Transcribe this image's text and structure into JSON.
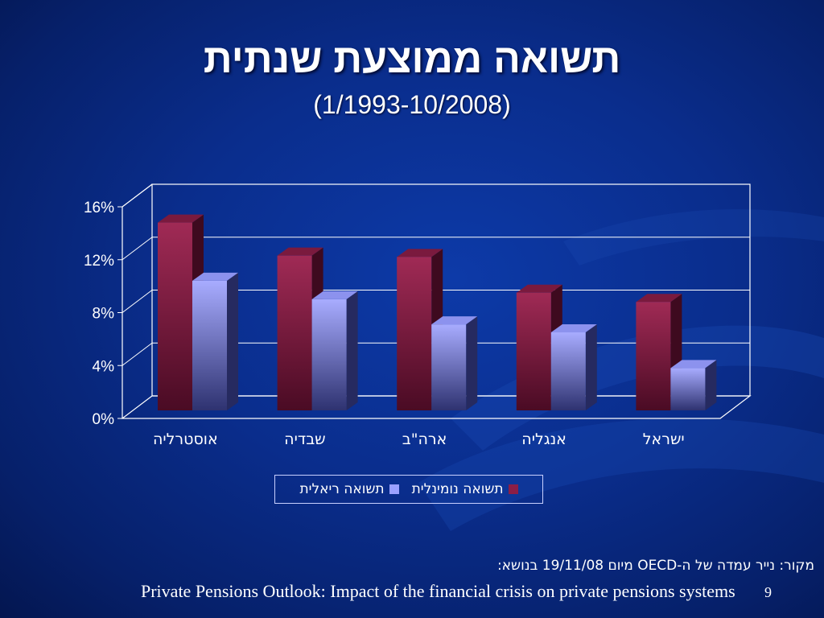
{
  "slide": {
    "title": "תשואה ממוצעת שנתית",
    "subtitle": "(1/1993-10/2008)",
    "source_line": "מקור: נייר עמדה של ה-OECD מיום 19/11/08 בנושא:",
    "source_title": "Private Pensions Outlook: Impact of the financial crisis on private pensions systems",
    "page_number": "9"
  },
  "colors": {
    "nominal": "#8b1e46",
    "real": "#9aa0ff",
    "background": "#0a2d8c"
  },
  "chart_data": {
    "type": "bar",
    "categories": [
      "אוסטרליה",
      "שבדיה",
      "ארה\"ב",
      "אנגליה",
      "ישראל"
    ],
    "series": [
      {
        "name": "תשואה נומינלית",
        "values": [
          14.2,
          11.7,
          11.6,
          8.9,
          8.2
        ]
      },
      {
        "name": "תשואה ריאלית",
        "values": [
          9.8,
          8.4,
          6.5,
          5.9,
          3.2
        ]
      }
    ],
    "yticks": [
      "0%",
      "4%",
      "8%",
      "12%",
      "16%"
    ],
    "ylim": [
      0,
      16
    ],
    "grid": true,
    "legend": "bottom"
  }
}
